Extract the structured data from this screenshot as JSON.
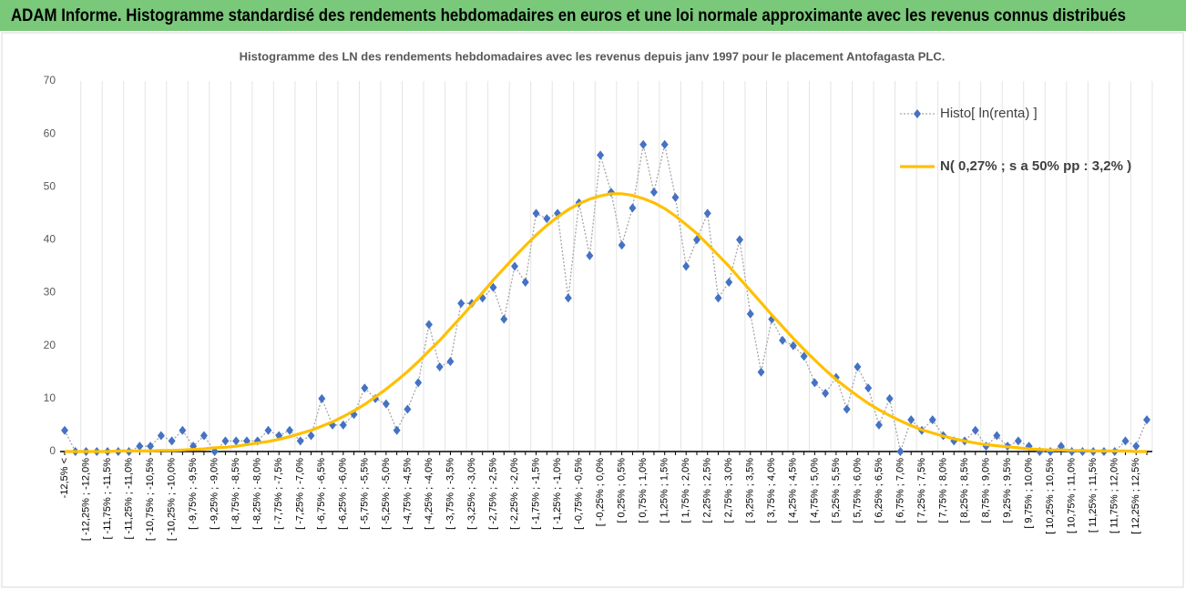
{
  "header": {
    "title": "ADAM Informe. Histogramme standardisé des rendements hebdomadaires en euros et une loi normale approximante avec les revenus connus distribués"
  },
  "chart_data": {
    "type": "line",
    "title": "Histogramme des LN des rendements hebdomadaires avec les revenus depuis janv 1997 pour le placement Antofagasta PLC.",
    "categories": [
      "-12,5% <",
      null,
      "[ -12,25% ; -12,0%",
      null,
      "[ -11,75% ; -11,5%",
      null,
      "[ -11,25% ; -11,0%",
      null,
      "[ -10,75% ; -10,5%",
      null,
      "[ -10,25% ; -10,0%",
      null,
      "[ -9,75% ; -9,5%",
      null,
      "[ -9,25% ; -9,0%",
      null,
      "[ -8,75% ; -8,5%",
      null,
      "[ -8,25% ; -8,0%",
      null,
      "[ -7,75% ; -7,5%",
      null,
      "[ -7,25% ; -7,0%",
      null,
      "[ -6,75% ; -6,5%",
      null,
      "[ -6,25% ; -6,0%",
      null,
      "[ -5,75% ; -5,5%",
      null,
      "[ -5,25% ; -5,0%",
      null,
      "[ -4,75% ; -4,5%",
      null,
      "[ -4,25% ; -4,0%",
      null,
      "[ -3,75% ; -3,5%",
      null,
      "[ -3,25% ; -3,0%",
      null,
      "[ -2,75% ; -2,5%",
      null,
      "[ -2,25% ; -2,0%",
      null,
      "[ -1,75% ; -1,5%",
      null,
      "[ -1,25% ; -1,0%",
      null,
      "[ -0,75% ; -0,5%",
      null,
      "[ -0,25% ; 0,0%",
      null,
      "[ 0,25% ; 0,5%",
      null,
      "[ 0,75% ; 1,0%",
      null,
      "[ 1,25% ; 1,5%",
      null,
      "[ 1,75% ; 2,0%",
      null,
      "[ 2,25% ; 2,5%",
      null,
      "[ 2,75% ; 3,0%",
      null,
      "[ 3,25% ; 3,5%",
      null,
      "[ 3,75% ; 4,0%",
      null,
      "[ 4,25% ; 4,5%",
      null,
      "[ 4,75% ; 5,0%",
      null,
      "[ 5,25% ; 5,5%",
      null,
      "[ 5,75% ; 6,0%",
      null,
      "[ 6,25% ; 6,5%",
      null,
      "[ 6,75% ; 7,0%",
      null,
      "[ 7,25% ; 7,5%",
      null,
      "[ 7,75% ; 8,0%",
      null,
      "[ 8,25% ; 8,5%",
      null,
      "[ 8,75% ; 9,0%",
      null,
      "[ 9,25% ; 9,5%",
      null,
      "[ 9,75% ; 10,0%",
      null,
      "[ 10,25% ; 10,5%",
      null,
      "[ 10,75% ; 11,0%",
      null,
      "[ 11,25% ; 11,5%",
      null,
      "[ 11,75% ; 12,0%",
      null,
      "[ 12,25% ; 12,5%",
      null
    ],
    "series": [
      {
        "name": "Histo[ ln(renta) ]",
        "color": "#4472c4",
        "values": [
          4,
          0,
          0,
          0,
          0,
          0,
          0,
          1,
          1,
          3,
          2,
          4,
          1,
          3,
          0,
          2,
          2,
          2,
          2,
          4,
          3,
          4,
          2,
          3,
          10,
          5,
          5,
          7,
          12,
          10,
          9,
          4,
          8,
          13,
          24,
          16,
          17,
          28,
          28,
          29,
          31,
          25,
          35,
          32,
          45,
          44,
          45,
          29,
          47,
          37,
          56,
          49,
          39,
          46,
          58,
          49,
          58,
          48,
          35,
          40,
          45,
          29,
          32,
          40,
          26,
          15,
          25,
          21,
          20,
          18,
          13,
          11,
          14,
          8,
          16,
          12,
          5,
          10,
          0,
          6,
          4,
          6,
          3,
          2,
          2,
          4,
          1,
          3,
          1,
          2,
          1,
          0,
          0,
          1,
          0,
          0,
          0,
          0,
          0,
          2,
          1,
          6
        ]
      },
      {
        "name": "N( 0,27% ; s a 50% pp : 3,2% )",
        "color": "#ffc000",
        "values": [
          0,
          0,
          0,
          0,
          0,
          0.1,
          0.1,
          0.1,
          0.1,
          0.2,
          0.2,
          0.3,
          0.4,
          0.5,
          0.7,
          0.8,
          1.0,
          1.3,
          1.6,
          1.9,
          2.3,
          2.8,
          3.4,
          4.0,
          4.8,
          5.6,
          6.6,
          7.7,
          8.9,
          10.3,
          11.8,
          13.4,
          15.1,
          17.0,
          19.0,
          21.0,
          23.2,
          25.4,
          27.7,
          30.0,
          32.4,
          34.6,
          36.8,
          38.9,
          40.9,
          42.7,
          44.3,
          45.7,
          46.8,
          47.7,
          48.3,
          48.7,
          48.7,
          48.4,
          47.8,
          47.0,
          45.9,
          44.5,
          42.9,
          41.2,
          39.2,
          37.1,
          35.0,
          32.7,
          30.4,
          28.1,
          25.8,
          23.6,
          21.4,
          19.3,
          17.3,
          15.4,
          13.6,
          12.0,
          10.5,
          9.1,
          7.9,
          6.8,
          5.8,
          4.9,
          4.1,
          3.5,
          2.9,
          2.4,
          2.0,
          1.6,
          1.3,
          1.1,
          0.9,
          0.7,
          0.5,
          0.4,
          0.3,
          0.3,
          0.2,
          0.2,
          0.1,
          0.1,
          0.1,
          0.1,
          0,
          0
        ]
      }
    ],
    "ylim": [
      0,
      70
    ],
    "yticks": [
      0,
      10,
      20,
      30,
      40,
      50,
      60,
      70
    ]
  }
}
